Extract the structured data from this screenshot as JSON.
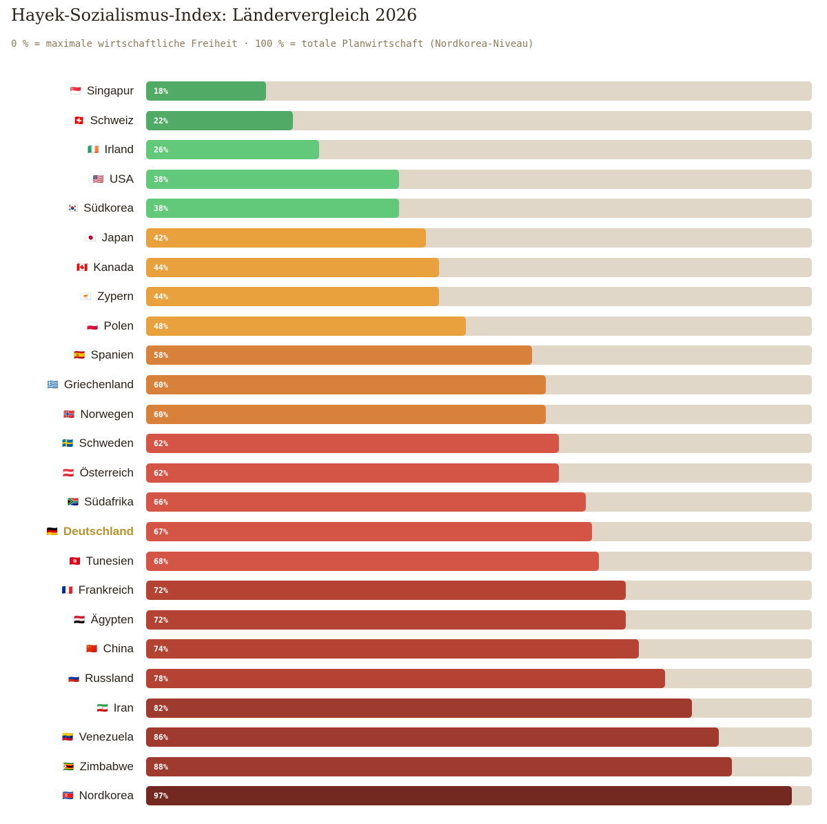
{
  "title": "Hayek-Sozialismus-Index: Ländervergleich 2026",
  "subtitle": "0 % = maximale wirtschaftliche Freiheit · 100 % = totale Planwirtschaft (Nordkorea-Niveau)",
  "chart_data": {
    "type": "bar",
    "orientation": "horizontal",
    "categories": [
      "Singapur",
      "Schweiz",
      "Irland",
      "USA",
      "Südkorea",
      "Japan",
      "Kanada",
      "Zypern",
      "Polen",
      "Spanien",
      "Griechenland",
      "Norwegen",
      "Schweden",
      "Österreich",
      "Südafrika",
      "Deutschland",
      "Tunesien",
      "Frankreich",
      "Ägypten",
      "China",
      "Russland",
      "Iran",
      "Venezuela",
      "Zimbabwe",
      "Nordkorea"
    ],
    "flags": [
      "🇸🇬",
      "🇨🇭",
      "🇮🇪",
      "🇺🇸",
      "🇰🇷",
      "🇯🇵",
      "🇨🇦",
      "🇨🇾",
      "🇵🇱",
      "🇪🇸",
      "🇬🇷",
      "🇳🇴",
      "🇸🇪",
      "🇦🇹",
      "🇿🇦",
      "🇩🇪",
      "🇹🇳",
      "🇫🇷",
      "🇪🇬",
      "🇨🇳",
      "🇷🇺",
      "🇮🇷",
      "🇻🇪",
      "🇿🇼",
      "🇰🇵"
    ],
    "values": [
      18,
      22,
      26,
      38,
      38,
      42,
      44,
      44,
      48,
      58,
      60,
      60,
      62,
      62,
      66,
      67,
      68,
      72,
      72,
      74,
      78,
      82,
      86,
      88,
      97
    ],
    "value_suffix": "%",
    "xlim": [
      0,
      100
    ],
    "highlight": "Deutschland",
    "highlight_color": "#b8922e",
    "track_color": "#e1d7c9",
    "color_scale": [
      {
        "max": 25,
        "color": "#52aa67"
      },
      {
        "max": 40,
        "color": "#62c97a"
      },
      {
        "max": 50,
        "color": "#e8a13d"
      },
      {
        "max": 60,
        "color": "#d7813a"
      },
      {
        "max": 70,
        "color": "#d45545"
      },
      {
        "max": 80,
        "color": "#b54334"
      },
      {
        "max": 90,
        "color": "#9e3a2e"
      },
      {
        "max": 100,
        "color": "#732820"
      }
    ]
  }
}
